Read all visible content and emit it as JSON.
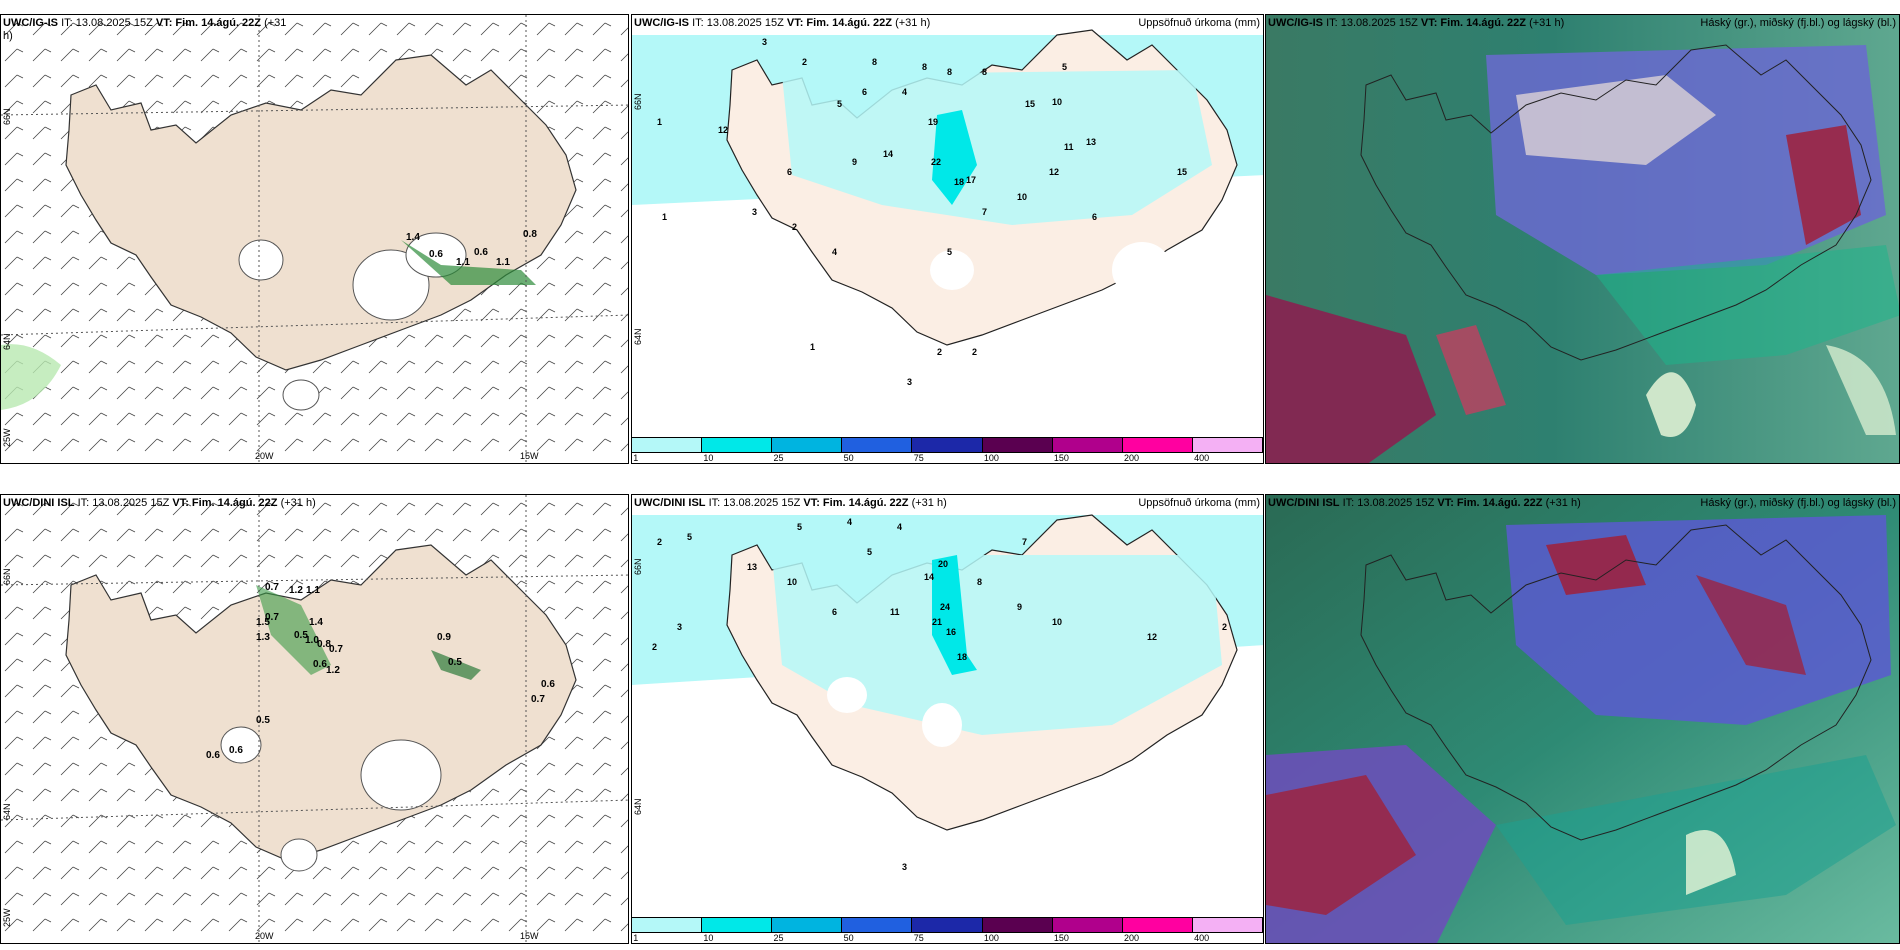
{
  "panels": [
    {
      "model": "UWC/IG-IS",
      "it": "IT: 13.08.2025 15Z",
      "vt_label": "VT:",
      "vt": "Fim. 14.ágú. 22Z",
      "lead": "(+31",
      "lead2": "h)",
      "right": ""
    },
    {
      "model": "UWC/IG-IS",
      "it": "IT: 13.08.2025 15Z",
      "vt_label": "VT:",
      "vt": "Fim. 14.ágú. 22Z",
      "lead": "(+31 h)",
      "right": "Uppsöfnuð úrkoma (mm)"
    },
    {
      "model": "UWC/IG-IS",
      "it": "IT: 13.08.2025 15Z",
      "vt_label": "VT:",
      "vt": "Fim. 14.ágú. 22Z",
      "lead": "(+31 h)",
      "right": "Háský (gr.), miðský (fj.bl.) og lágský (bl.)"
    },
    {
      "model": "UWC/DINI ISL",
      "it": "IT: 13.08.2025 15Z",
      "vt_label": "VT:",
      "vt": "Fim. 14.ágú. 22Z",
      "lead": "(+31 h)",
      "right": ""
    },
    {
      "model": "UWC/DINI ISL",
      "it": "IT: 13.08.2025 15Z",
      "vt_label": "VT:",
      "vt": "Fim. 14.ágú. 22Z",
      "lead": "(+31 h)",
      "right": "Uppsöfnuð úrkoma (mm)"
    },
    {
      "model": "UWC/DINI ISL",
      "it": "IT: 13.08.2025 15Z",
      "vt_label": "VT:",
      "vt": "Fim. 14.ágú. 22Z",
      "lead": "(+31 h)",
      "right": "Háský (gr.), miðský (fj.bl.) og lágský (bl.)"
    }
  ],
  "axes": {
    "lon_20": "20W",
    "lon_15": "15W",
    "lat_66": "66N",
    "lat_64": "64N",
    "lon_25": "25W"
  },
  "colorbar": {
    "labels": [
      "1",
      "10",
      "25",
      "50",
      "75",
      "100",
      "150",
      "200",
      "400"
    ],
    "colors": [
      "#b4f8f8",
      "#00e8e8",
      "#00b4e0",
      "#2060e0",
      "#1c28a8",
      "#5a0050",
      "#b0008c",
      "#ff00a0",
      "#f4b0f4"
    ]
  },
  "wind_values_top": [
    "1.4",
    "0.6",
    "1.1",
    "0.6",
    "1.1",
    "0.8"
  ],
  "wind_values_bottom": [
    "0.7",
    "1.2",
    "1.1",
    "0.7",
    "1.5",
    "1.4",
    "1.3",
    "0.5",
    "1.0",
    "0.8",
    "0.7",
    "0.6",
    "0.9",
    "0.5",
    "1.2",
    "0.6",
    "0.7",
    "0.5",
    "0.6",
    "0.6"
  ],
  "precip_values_top": [
    "3",
    "2",
    "5",
    "8",
    "8",
    "8",
    "8",
    "5",
    "6",
    "4",
    "10",
    "12",
    "19",
    "22",
    "18",
    "17",
    "15",
    "14",
    "11",
    "13",
    "12",
    "10",
    "9",
    "6",
    "3",
    "2",
    "1",
    "1",
    "4",
    "5",
    "7",
    "6",
    "1",
    "2",
    "2",
    "3",
    "15"
  ],
  "precip_values_bottom": [
    "2",
    "5",
    "5",
    "4",
    "13",
    "10",
    "14",
    "20",
    "24",
    "21",
    "16",
    "18",
    "11",
    "12",
    "10",
    "9",
    "8",
    "6",
    "5",
    "4",
    "3",
    "2",
    "7",
    "2",
    "3"
  ]
}
